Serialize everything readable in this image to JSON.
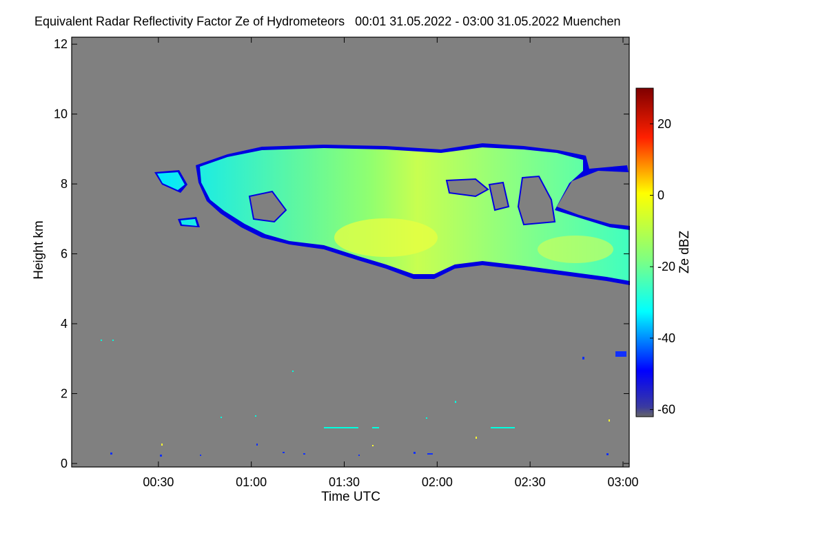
{
  "title": "Equivalent Radar Reflectivity Factor Ze of Hydrometeors   00:01 31.05.2022 - 03:00 31.05.2022 Muenchen",
  "chart_data": {
    "type": "heatmap",
    "xlabel": "Time UTC",
    "ylabel": "Height km",
    "xlim_minutes": [
      2,
      182
    ],
    "x_ticks": [
      {
        "label": "00:30",
        "minute": 30
      },
      {
        "label": "01:00",
        "minute": 60
      },
      {
        "label": "01:30",
        "minute": 90
      },
      {
        "label": "02:00",
        "minute": 120
      },
      {
        "label": "02:30",
        "minute": 150
      },
      {
        "label": "03:00",
        "minute": 180
      }
    ],
    "ylim_km": [
      -0.1,
      12.2
    ],
    "y_ticks": [
      0,
      2,
      4,
      6,
      8,
      10,
      12
    ],
    "background_color": "#808080",
    "colorbar": {
      "label": "Ze dBZ",
      "range": [
        -62,
        30
      ],
      "ticks": [
        20,
        0,
        -20,
        -40,
        -60
      ],
      "colormap": [
        "#666666",
        "#00008f",
        "#0000ff",
        "#00ffff",
        "#ffff00",
        "#ff0000",
        "#7f0000"
      ]
    },
    "cloud_layer": {
      "description_values": {
        "time_start_minute": 27,
        "time_end_minute": 182,
        "base_km_range": [
          5.1,
          6.8
        ],
        "top_km_range": [
          8.0,
          9.0
        ],
        "max_ze_dbz": -5,
        "min_ze_dbz": -45,
        "core_time_minute": 97,
        "core_height_km": 6.3
      }
    }
  }
}
